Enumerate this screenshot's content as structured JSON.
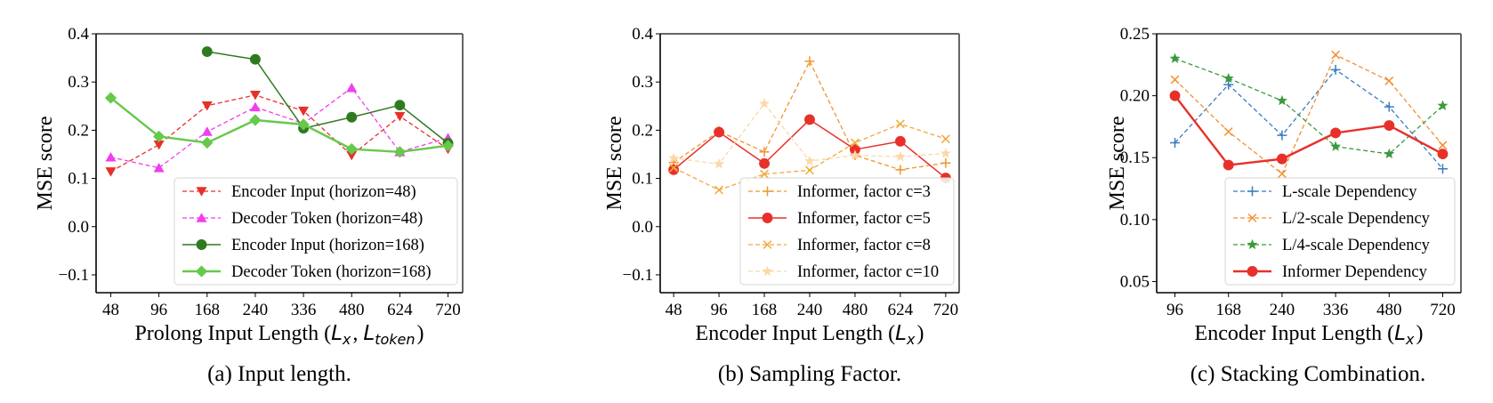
{
  "chart_data": [
    {
      "id": "a",
      "type": "line",
      "caption": "(a)  Input length.",
      "xlabel_prefix": "Prolong Input Length (",
      "xlabel_math": [
        {
          "base": "L",
          "sub": "x"
        },
        {
          "base": "L",
          "sub": "token"
        }
      ],
      "xlabel_suffix": ")",
      "ylabel": "MSE score",
      "categories": [
        "48",
        "96",
        "168",
        "240",
        "336",
        "480",
        "624",
        "720"
      ],
      "ylim": [
        -0.137,
        0.4
      ],
      "yticks": [
        -0.1,
        0.0,
        0.1,
        0.2,
        0.3,
        0.4
      ],
      "ytick_labels": [
        "−0.1",
        "0.0",
        "0.1",
        "0.2",
        "0.3",
        "0.4"
      ],
      "grid": false,
      "legend_position": "lower-right",
      "series": [
        {
          "name": "Encoder Input (horizon=48)",
          "color": "#e8302a",
          "dash": "dashed",
          "marker": "triangle-down",
          "values": [
            0.114,
            0.17,
            0.251,
            0.273,
            0.24,
            0.148,
            0.229,
            0.161
          ]
        },
        {
          "name": "Decoder Token (horizon=48)",
          "color": "#ee3fee",
          "dash": "dashed",
          "marker": "triangle-up",
          "values": [
            0.144,
            0.122,
            0.197,
            0.248,
            0.214,
            0.288,
            0.155,
            0.184
          ]
        },
        {
          "name": "Encoder Input (horizon=168)",
          "color": "#2f7a1f",
          "dash": "solid",
          "marker": "circle",
          "values": [
            null,
            null,
            0.363,
            0.347,
            0.204,
            0.227,
            0.252,
            0.173
          ]
        },
        {
          "name": "Decoder Token (horizon=168)",
          "color": "#66c94a",
          "dash": "solid-thick",
          "marker": "diamond",
          "values": [
            0.267,
            0.187,
            0.174,
            0.221,
            0.212,
            0.161,
            0.155,
            0.168
          ]
        }
      ]
    },
    {
      "id": "b",
      "type": "line",
      "caption": "(b)  Sampling Factor.",
      "xlabel_prefix": "Encoder Input Length (",
      "xlabel_math": [
        {
          "base": "L",
          "sub": "x"
        }
      ],
      "xlabel_suffix": ")",
      "ylabel": "MSE score",
      "categories": [
        "48",
        "96",
        "168",
        "240",
        "480",
        "624",
        "720"
      ],
      "ylim": [
        -0.137,
        0.4
      ],
      "yticks": [
        -0.1,
        0.0,
        0.1,
        0.2,
        0.3,
        0.4
      ],
      "ytick_labels": [
        "−0.1",
        "0.0",
        "0.1",
        "0.2",
        "0.3",
        "0.4"
      ],
      "grid": false,
      "legend_position": "lower-right",
      "series": [
        {
          "name": "Informer, factor c=3",
          "color": "#f0952e",
          "dash": "dashed",
          "marker": "plus",
          "values": [
            0.133,
            0.198,
            0.155,
            0.343,
            0.148,
            0.118,
            0.132
          ]
        },
        {
          "name": "Informer, factor c=5",
          "color": "#e8302a",
          "dash": "solid",
          "marker": "circle",
          "values": [
            0.118,
            0.196,
            0.131,
            0.222,
            0.16,
            0.177,
            0.101
          ]
        },
        {
          "name": "Informer, factor c=8",
          "color": "#f2a93a",
          "dash": "dashed",
          "marker": "x",
          "values": [
            0.122,
            0.076,
            0.109,
            0.117,
            0.174,
            0.213,
            0.182
          ]
        },
        {
          "name": "Informer, factor c=10",
          "color": "#fbd8a8",
          "dash": "dashed",
          "marker": "star",
          "values": [
            0.142,
            0.13,
            0.255,
            0.136,
            0.148,
            0.145,
            0.152
          ]
        }
      ]
    },
    {
      "id": "c",
      "type": "line",
      "caption": "(c)  Stacking Combination.",
      "xlabel_prefix": "Encoder Input Length (",
      "xlabel_math": [
        {
          "base": "L",
          "sub": "x"
        }
      ],
      "xlabel_suffix": ")",
      "ylabel": "MSE score",
      "categories": [
        "96",
        "168",
        "240",
        "336",
        "480",
        "720"
      ],
      "ylim": [
        0.041,
        0.25
      ],
      "yticks": [
        0.05,
        0.1,
        0.15,
        0.2,
        0.25
      ],
      "ytick_labels": [
        "0.05",
        "0.10",
        "0.15",
        "0.20",
        "0.25"
      ],
      "grid": false,
      "legend_position": "lower-right",
      "series": [
        {
          "name": "L-scale Dependency",
          "color": "#3a7bbf",
          "dash": "dashed",
          "marker": "plus",
          "values": [
            0.162,
            0.209,
            0.168,
            0.221,
            0.191,
            0.141
          ]
        },
        {
          "name": "L/2-scale Dependency",
          "color": "#f58f35",
          "dash": "dashed",
          "marker": "x",
          "values": [
            0.213,
            0.171,
            0.137,
            0.233,
            0.212,
            0.16
          ]
        },
        {
          "name": "L/4-scale Dependency",
          "color": "#3c9a3c",
          "dash": "dashed",
          "marker": "star",
          "values": [
            0.23,
            0.214,
            0.196,
            0.159,
            0.153,
            0.192
          ]
        },
        {
          "name": "Informer Dependency",
          "color": "#e8302a",
          "dash": "solid-thick",
          "marker": "circle",
          "values": [
            0.2,
            0.144,
            0.149,
            0.17,
            0.176,
            0.153
          ]
        }
      ]
    }
  ]
}
